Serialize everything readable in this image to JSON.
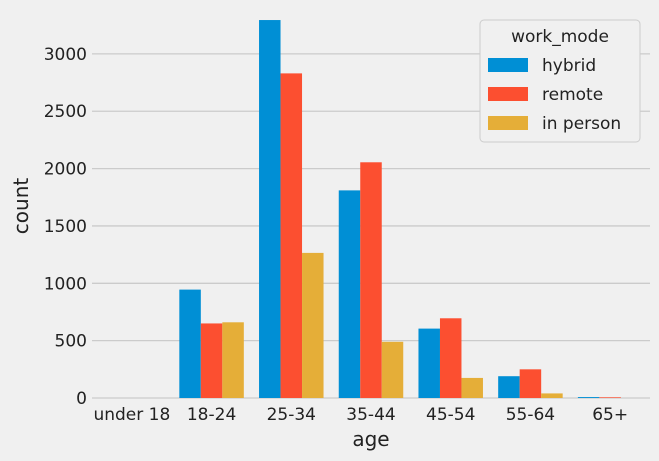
{
  "chart_data": {
    "type": "bar",
    "categories": [
      "under 18",
      "18-24",
      "25-34",
      "35-44",
      "45-54",
      "55-64",
      "65+"
    ],
    "series": [
      {
        "name": "hybrid",
        "color": "#008fd5",
        "values": [
          0,
          945,
          3295,
          1810,
          605,
          190,
          8
        ]
      },
      {
        "name": "remote",
        "color": "#fc4f30",
        "values": [
          0,
          650,
          2830,
          2055,
          695,
          250,
          6
        ]
      },
      {
        "name": "in person",
        "color": "#e5ae38",
        "values": [
          0,
          660,
          1265,
          490,
          175,
          40,
          0
        ]
      }
    ],
    "xlabel": "age",
    "ylabel": "count",
    "ylim": [
      0,
      3400
    ],
    "yticks": [
      0,
      500,
      1000,
      1500,
      2000,
      2500,
      3000
    ],
    "grid": "horizontal",
    "legend": {
      "title": "work_mode",
      "placement": "top-right"
    }
  }
}
